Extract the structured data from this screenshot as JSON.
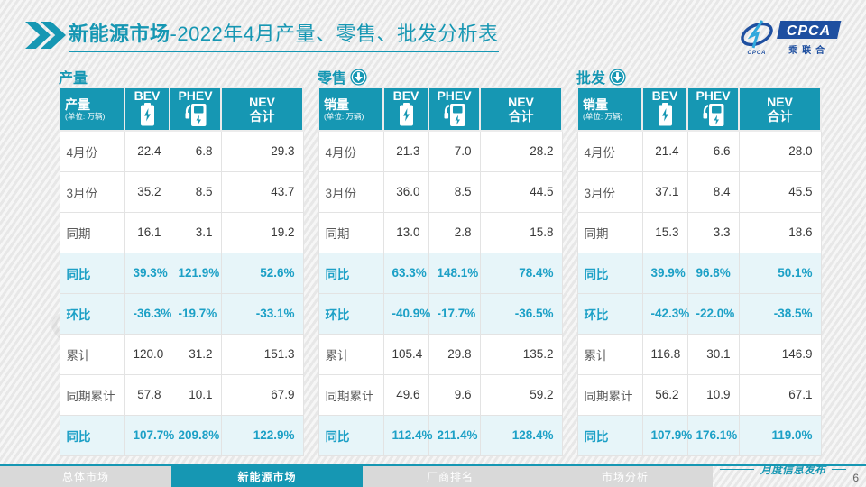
{
  "header": {
    "title_bold": "新能源市场",
    "title_rest": "-2022年4月产量、零售、批发分析表",
    "logo": {
      "acronym": "CPCA",
      "org_name": "乘联合",
      "small_text": "CPCA"
    }
  },
  "table_header": {
    "bev": "BEV",
    "phev": "PHEV",
    "nev_line1": "NEV",
    "nev_line2": "合计",
    "unit_sub": "(单位: 万辆)"
  },
  "icons": {
    "bev": "battery-icon",
    "phev": "charging-station-icon",
    "section_arrow": "circle-down-arrow-icon",
    "title_marker": "double-chevron-icon"
  },
  "tables": [
    {
      "key": "production",
      "section_label": "产量",
      "arrow": false,
      "unit_label": "产量",
      "rows": [
        {
          "label": "4月份",
          "hl": false,
          "values": [
            "22.4",
            "6.8",
            "29.3"
          ]
        },
        {
          "label": "3月份",
          "hl": false,
          "values": [
            "35.2",
            "8.5",
            "43.7"
          ]
        },
        {
          "label": "同期",
          "hl": false,
          "values": [
            "16.1",
            "3.1",
            "19.2"
          ]
        },
        {
          "label": "同比",
          "hl": true,
          "values": [
            "39.3%",
            "121.9%",
            "52.6%"
          ]
        },
        {
          "label": "环比",
          "hl": true,
          "values": [
            "-36.3%",
            "-19.7%",
            "-33.1%"
          ]
        },
        {
          "label": "累计",
          "hl": false,
          "values": [
            "120.0",
            "31.2",
            "151.3"
          ]
        },
        {
          "label": "同期累计",
          "hl": false,
          "values": [
            "57.8",
            "10.1",
            "67.9"
          ]
        },
        {
          "label": "同比",
          "hl": true,
          "values": [
            "107.7%",
            "209.8%",
            "122.9%"
          ]
        }
      ]
    },
    {
      "key": "retail",
      "section_label": "零售",
      "arrow": true,
      "unit_label": "销量",
      "rows": [
        {
          "label": "4月份",
          "hl": false,
          "values": [
            "21.3",
            "7.0",
            "28.2"
          ]
        },
        {
          "label": "3月份",
          "hl": false,
          "values": [
            "36.0",
            "8.5",
            "44.5"
          ]
        },
        {
          "label": "同期",
          "hl": false,
          "values": [
            "13.0",
            "2.8",
            "15.8"
          ]
        },
        {
          "label": "同比",
          "hl": true,
          "values": [
            "63.3%",
            "148.1%",
            "78.4%"
          ]
        },
        {
          "label": "环比",
          "hl": true,
          "values": [
            "-40.9%",
            "-17.7%",
            "-36.5%"
          ]
        },
        {
          "label": "累计",
          "hl": false,
          "values": [
            "105.4",
            "29.8",
            "135.2"
          ]
        },
        {
          "label": "同期累计",
          "hl": false,
          "values": [
            "49.6",
            "9.6",
            "59.2"
          ]
        },
        {
          "label": "同比",
          "hl": true,
          "values": [
            "112.4%",
            "211.4%",
            "128.4%"
          ]
        }
      ]
    },
    {
      "key": "wholesale",
      "section_label": "批发",
      "arrow": true,
      "unit_label": "销量",
      "rows": [
        {
          "label": "4月份",
          "hl": false,
          "values": [
            "21.4",
            "6.6",
            "28.0"
          ]
        },
        {
          "label": "3月份",
          "hl": false,
          "values": [
            "37.1",
            "8.4",
            "45.5"
          ]
        },
        {
          "label": "同期",
          "hl": false,
          "values": [
            "15.3",
            "3.3",
            "18.6"
          ]
        },
        {
          "label": "同比",
          "hl": true,
          "values": [
            "39.9%",
            "96.8%",
            "50.1%"
          ]
        },
        {
          "label": "环比",
          "hl": true,
          "values": [
            "-42.3%",
            "-22.0%",
            "-38.5%"
          ]
        },
        {
          "label": "累计",
          "hl": false,
          "values": [
            "116.8",
            "30.1",
            "146.9"
          ]
        },
        {
          "label": "同期累计",
          "hl": false,
          "values": [
            "56.2",
            "10.9",
            "67.1"
          ]
        },
        {
          "label": "同比",
          "hl": true,
          "values": [
            "107.9%",
            "176.1%",
            "119.0%"
          ]
        }
      ]
    }
  ],
  "watermark": "CPCA 乘联会",
  "footer": {
    "tabs": [
      {
        "label": "总体市场",
        "active": false
      },
      {
        "label": "新能源市场",
        "active": true
      },
      {
        "label": "厂商排名",
        "active": false
      },
      {
        "label": "市场分析",
        "active": false
      }
    ],
    "publication": "月度信息发布",
    "page_number": "6"
  },
  "colors": {
    "accent_teal": "#1697B3",
    "highlight_row_bg": "#E7F5F9",
    "percent_text": "#1CA0C6",
    "logo_blue": "#1E4FA0",
    "inactive_tab_bg": "#D9D9D9",
    "page_bg": "#ECECEC"
  }
}
